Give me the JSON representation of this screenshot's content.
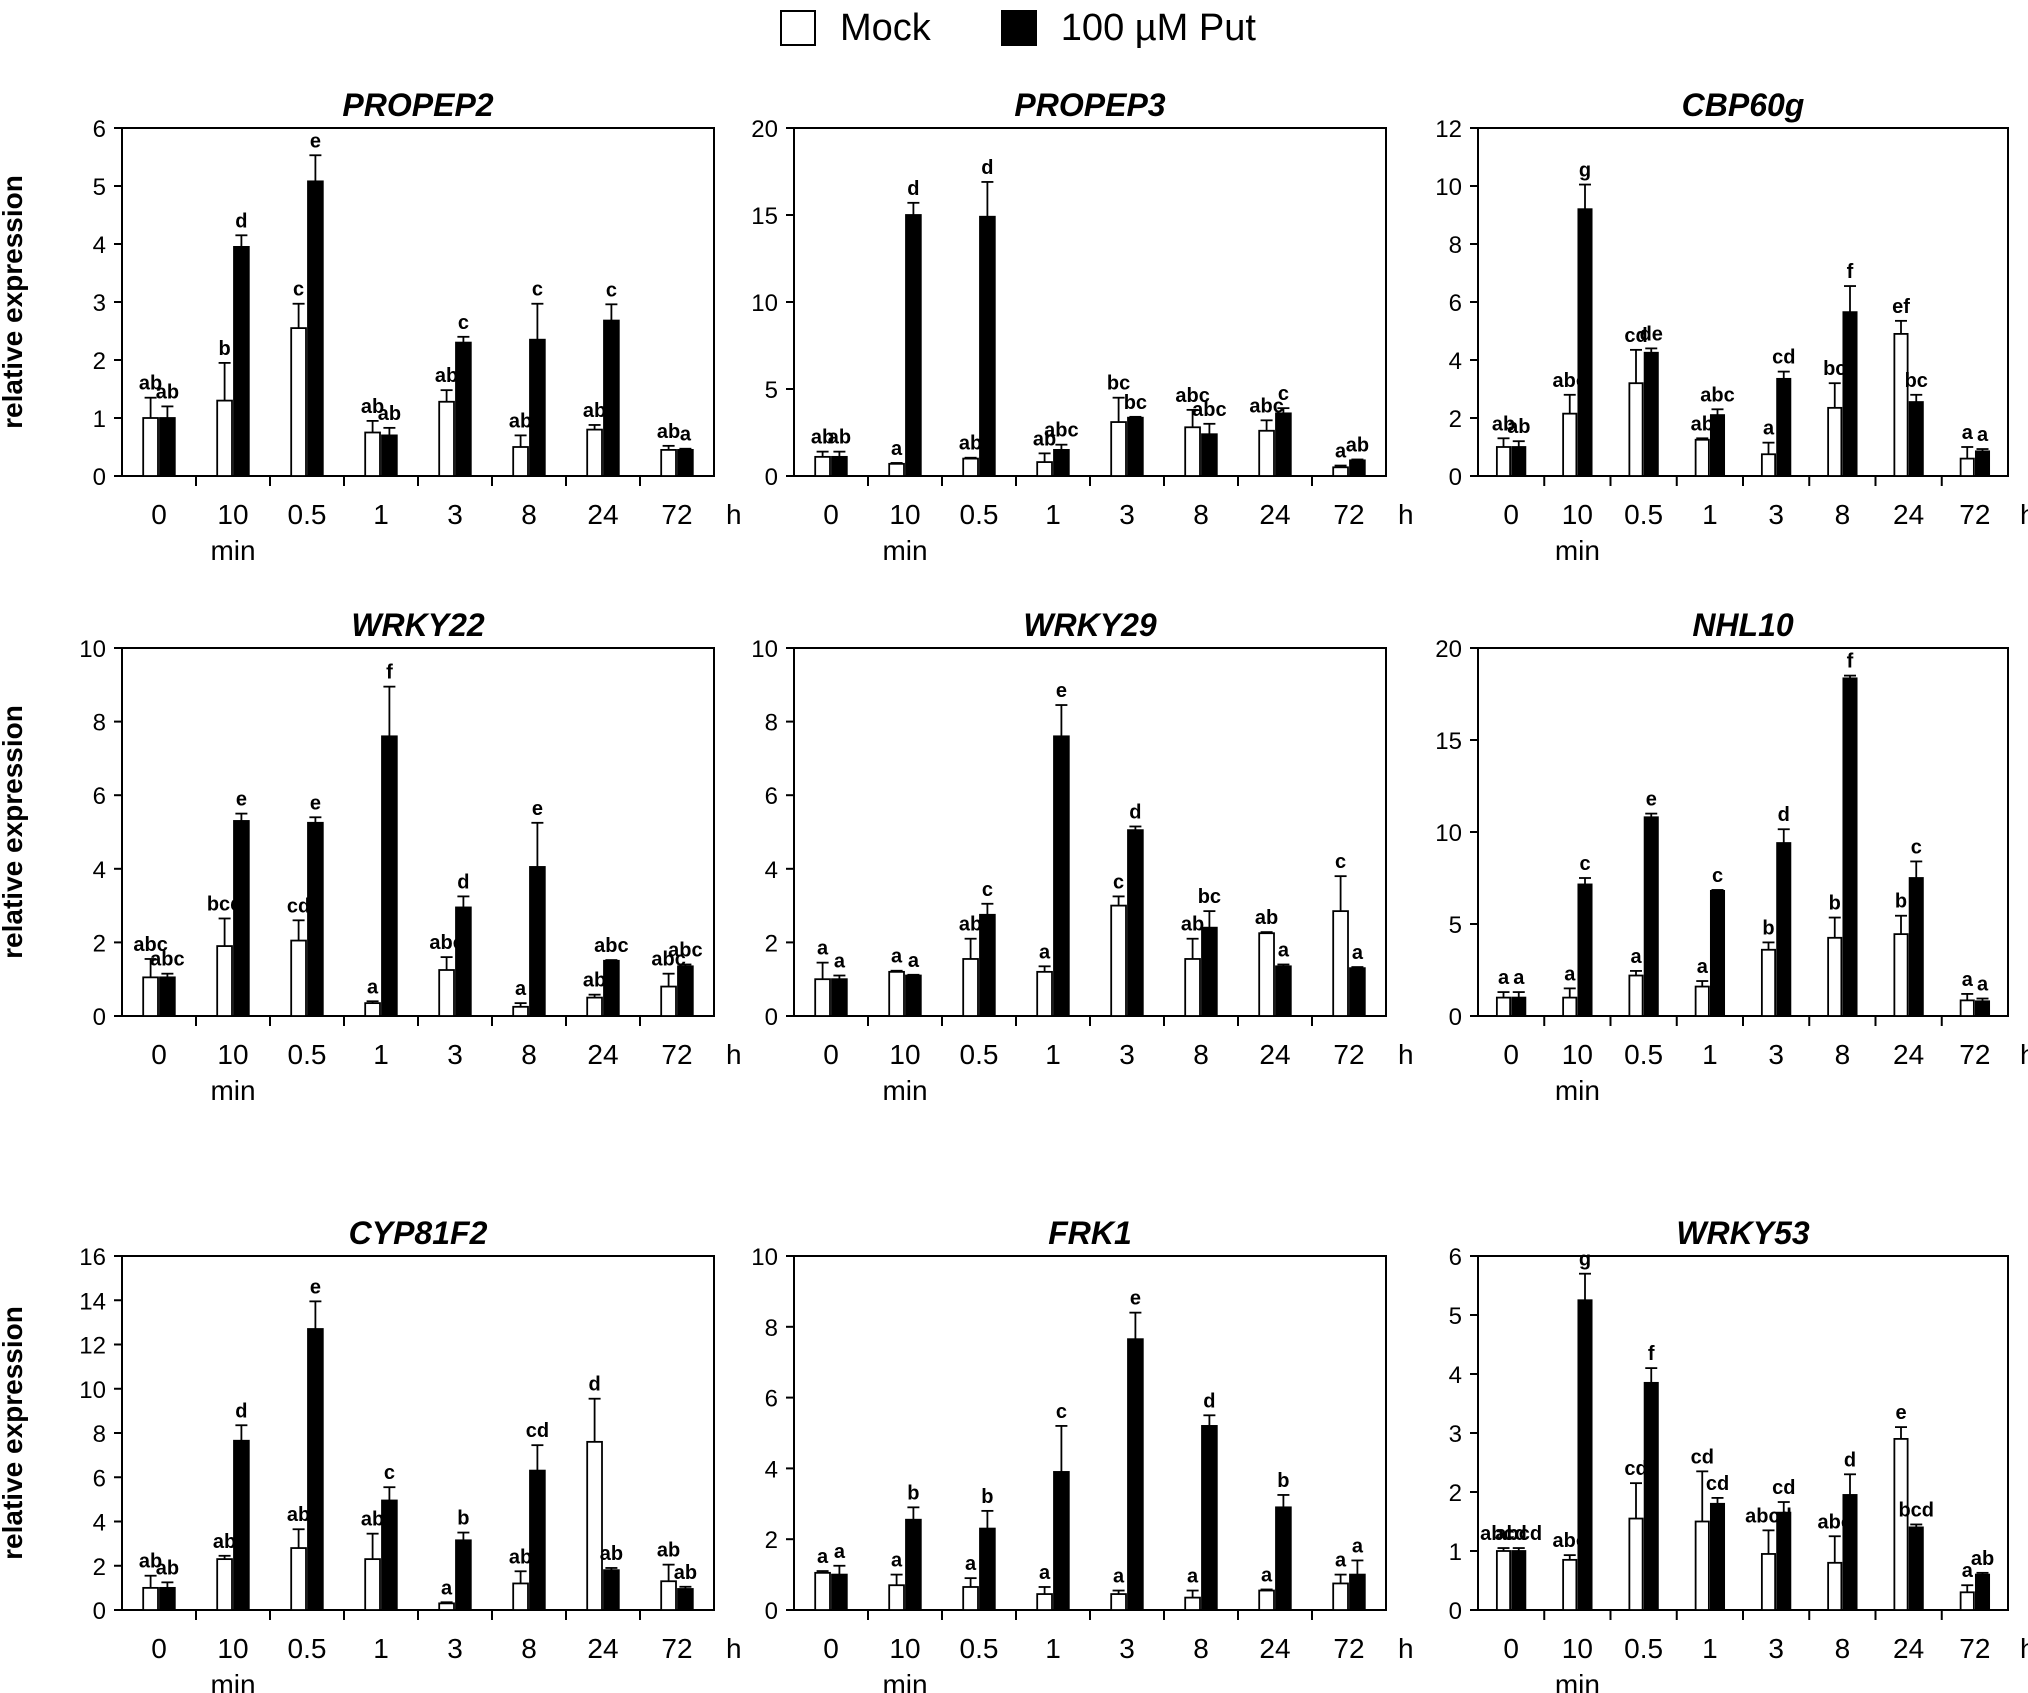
{
  "legend": {
    "mock_label": "Mock",
    "put_label": "100 µM Put"
  },
  "colors": {
    "mock_fill": "#ffffff",
    "put_fill": "#000000",
    "axis": "#000000"
  },
  "chart_data": [
    {
      "type": "bar",
      "title": "PROPEP2",
      "ylabel": "relative expression",
      "categories": [
        "0",
        "10",
        "0.5",
        "1",
        "3",
        "8",
        "24",
        "72"
      ],
      "x_unit": "h",
      "x_sublabel": "min",
      "ylim": [
        0,
        6
      ],
      "yticks": [
        0,
        1,
        2,
        3,
        4,
        5,
        6
      ],
      "series": [
        {
          "name": "Mock",
          "values": [
            1.0,
            1.3,
            2.55,
            0.75,
            1.28,
            0.5,
            0.8,
            0.45
          ],
          "errors": [
            0.35,
            0.65,
            0.42,
            0.2,
            0.2,
            0.2,
            0.08,
            0.07
          ],
          "letters": [
            "ab",
            "b",
            "c",
            "ab",
            "ab",
            "ab",
            "ab",
            "ab"
          ]
        },
        {
          "name": "100 µM Put",
          "values": [
            1.0,
            3.95,
            5.08,
            0.7,
            2.3,
            2.35,
            2.68,
            0.45
          ],
          "errors": [
            0.2,
            0.2,
            0.45,
            0.13,
            0.1,
            0.62,
            0.28,
            0.02
          ],
          "letters": [
            "ab",
            "d",
            "e",
            "ab",
            "c",
            "c",
            "c",
            "a"
          ]
        }
      ]
    },
    {
      "type": "bar",
      "title": "PROPEP3",
      "ylabel": "",
      "categories": [
        "0",
        "10",
        "0.5",
        "1",
        "3",
        "8",
        "24",
        "72"
      ],
      "x_unit": "h",
      "x_sublabel": "min",
      "ylim": [
        0,
        20
      ],
      "yticks": [
        0,
        5,
        10,
        15,
        20
      ],
      "series": [
        {
          "name": "Mock",
          "values": [
            1.1,
            0.7,
            1.0,
            0.8,
            3.1,
            2.8,
            2.6,
            0.5
          ],
          "errors": [
            0.3,
            0.05,
            0.05,
            0.5,
            1.4,
            1.0,
            0.6,
            0.1
          ],
          "letters": [
            "ab",
            "a",
            "ab",
            "ab",
            "bc",
            "abc",
            "abc",
            "a"
          ]
        },
        {
          "name": "100 µM Put",
          "values": [
            1.1,
            15.0,
            14.9,
            1.5,
            3.35,
            2.4,
            3.6,
            0.9
          ],
          "errors": [
            0.3,
            0.7,
            2.0,
            0.3,
            0.05,
            0.6,
            0.3,
            0.05
          ],
          "letters": [
            "ab",
            "d",
            "d",
            "abc",
            "bc",
            "abc",
            "c",
            "ab"
          ]
        }
      ]
    },
    {
      "type": "bar",
      "title": "CBP60g",
      "ylabel": "",
      "categories": [
        "0",
        "10",
        "0.5",
        "1",
        "3",
        "8",
        "24",
        "72"
      ],
      "x_unit": "h",
      "x_sublabel": "min",
      "ylim": [
        0,
        12
      ],
      "yticks": [
        0,
        2,
        4,
        6,
        8,
        10,
        12
      ],
      "series": [
        {
          "name": "Mock",
          "values": [
            1.0,
            2.15,
            3.2,
            1.25,
            0.75,
            2.35,
            4.9,
            0.6
          ],
          "errors": [
            0.3,
            0.65,
            1.15,
            0.05,
            0.4,
            0.85,
            0.45,
            0.4
          ],
          "letters": [
            "ab",
            "abc",
            "cd",
            "ab",
            "a",
            "bc",
            "ef",
            "a"
          ]
        },
        {
          "name": "100 µM Put",
          "values": [
            1.0,
            9.2,
            4.25,
            2.1,
            3.35,
            5.65,
            2.55,
            0.85
          ],
          "errors": [
            0.2,
            0.85,
            0.15,
            0.2,
            0.25,
            0.9,
            0.25,
            0.08
          ],
          "letters": [
            "ab",
            "g",
            "de",
            "abc",
            "cd",
            "f",
            "bc",
            "a"
          ]
        }
      ]
    },
    {
      "type": "bar",
      "title": "WRKY22",
      "ylabel": "relative expression",
      "categories": [
        "0",
        "10",
        "0.5",
        "1",
        "3",
        "8",
        "24",
        "72"
      ],
      "x_unit": "h",
      "x_sublabel": "min",
      "ylim": [
        0,
        10
      ],
      "yticks": [
        0,
        2,
        4,
        6,
        8,
        10
      ],
      "series": [
        {
          "name": "Mock",
          "values": [
            1.05,
            1.9,
            2.05,
            0.35,
            1.25,
            0.25,
            0.5,
            0.8
          ],
          "errors": [
            0.5,
            0.75,
            0.55,
            0.05,
            0.35,
            0.1,
            0.08,
            0.35
          ],
          "letters": [
            "abc",
            "bcd",
            "cd",
            "a",
            "abc",
            "a",
            "ab",
            "abc"
          ]
        },
        {
          "name": "100 µM Put",
          "values": [
            1.05,
            5.3,
            5.25,
            7.6,
            2.95,
            4.05,
            1.5,
            1.35
          ],
          "errors": [
            0.1,
            0.2,
            0.15,
            1.35,
            0.3,
            1.2,
            0.02,
            0.05
          ],
          "letters": [
            "abc",
            "e",
            "e",
            "f",
            "d",
            "e",
            "abc",
            "abc"
          ]
        }
      ]
    },
    {
      "type": "bar",
      "title": "WRKY29",
      "ylabel": "",
      "categories": [
        "0",
        "10",
        "0.5",
        "1",
        "3",
        "8",
        "24",
        "72"
      ],
      "x_unit": "h",
      "x_sublabel": "min",
      "ylim": [
        0,
        10
      ],
      "yticks": [
        0,
        2,
        4,
        6,
        8,
        10
      ],
      "series": [
        {
          "name": "Mock",
          "values": [
            1.0,
            1.2,
            1.55,
            1.2,
            3.0,
            1.55,
            2.25,
            2.85
          ],
          "errors": [
            0.45,
            0.03,
            0.55,
            0.15,
            0.25,
            0.55,
            0.03,
            0.95
          ],
          "letters": [
            "a",
            "a",
            "ab",
            "a",
            "c",
            "ab",
            "ab",
            "c"
          ]
        },
        {
          "name": "100 µM Put",
          "values": [
            1.0,
            1.1,
            2.75,
            7.6,
            5.05,
            2.4,
            1.35,
            1.3
          ],
          "errors": [
            0.1,
            0.02,
            0.3,
            0.85,
            0.1,
            0.45,
            0.05,
            0.03
          ],
          "letters": [
            "a",
            "a",
            "c",
            "e",
            "d",
            "bc",
            "a",
            "a"
          ]
        }
      ]
    },
    {
      "type": "bar",
      "title": "NHL10",
      "ylabel": "",
      "categories": [
        "0",
        "10",
        "0.5",
        "1",
        "3",
        "8",
        "24",
        "72"
      ],
      "x_unit": "h",
      "x_sublabel": "min",
      "ylim": [
        0,
        20
      ],
      "yticks": [
        0,
        5,
        10,
        15,
        20
      ],
      "series": [
        {
          "name": "Mock",
          "values": [
            1.0,
            1.0,
            2.2,
            1.6,
            3.6,
            4.25,
            4.45,
            0.85
          ],
          "errors": [
            0.3,
            0.5,
            0.25,
            0.3,
            0.4,
            1.1,
            1.0,
            0.35
          ],
          "letters": [
            "a",
            "a",
            "a",
            "a",
            "b",
            "b",
            "b",
            "a"
          ]
        },
        {
          "name": "100 µM Put",
          "values": [
            1.0,
            7.15,
            10.8,
            6.8,
            9.4,
            18.35,
            7.5,
            0.8
          ],
          "errors": [
            0.3,
            0.35,
            0.2,
            0.05,
            0.75,
            0.15,
            0.9,
            0.15
          ],
          "letters": [
            "a",
            "c",
            "e",
            "c",
            "d",
            "f",
            "c",
            "a"
          ]
        }
      ]
    },
    {
      "type": "bar",
      "title": "CYP81F2",
      "ylabel": "relative expression",
      "categories": [
        "0",
        "10",
        "0.5",
        "1",
        "3",
        "8",
        "24",
        "72"
      ],
      "x_unit": "h",
      "x_sublabel": "min",
      "ylim": [
        0,
        16
      ],
      "yticks": [
        0,
        2,
        4,
        6,
        8,
        10,
        12,
        14,
        16
      ],
      "series": [
        {
          "name": "Mock",
          "values": [
            1.0,
            2.3,
            2.8,
            2.3,
            0.3,
            1.2,
            7.6,
            1.3
          ],
          "errors": [
            0.55,
            0.15,
            0.85,
            1.15,
            0.05,
            0.55,
            1.95,
            0.75
          ],
          "letters": [
            "ab",
            "ab",
            "ab",
            "ab",
            "a",
            "ab",
            "d",
            "ab"
          ]
        },
        {
          "name": "100 µM Put",
          "values": [
            1.0,
            7.65,
            12.7,
            4.95,
            3.15,
            6.3,
            1.8,
            0.95
          ],
          "errors": [
            0.25,
            0.7,
            1.25,
            0.6,
            0.35,
            1.15,
            0.1,
            0.1
          ],
          "letters": [
            "ab",
            "d",
            "e",
            "c",
            "b",
            "cd",
            "ab",
            "ab"
          ]
        }
      ]
    },
    {
      "type": "bar",
      "title": "FRK1",
      "ylabel": "",
      "categories": [
        "0",
        "10",
        "0.5",
        "1",
        "3",
        "8",
        "24",
        "72"
      ],
      "x_unit": "h",
      "x_sublabel": "min",
      "ylim": [
        0,
        10
      ],
      "yticks": [
        0,
        2,
        4,
        6,
        8,
        10
      ],
      "series": [
        {
          "name": "Mock",
          "values": [
            1.05,
            0.7,
            0.65,
            0.45,
            0.45,
            0.35,
            0.55,
            0.75
          ],
          "errors": [
            0.05,
            0.3,
            0.25,
            0.2,
            0.1,
            0.2,
            0.03,
            0.25
          ],
          "letters": [
            "a",
            "a",
            "a",
            "a",
            "a",
            "a",
            "a",
            "a"
          ]
        },
        {
          "name": "100 µM Put",
          "values": [
            1.0,
            2.55,
            2.3,
            3.9,
            7.65,
            5.2,
            2.9,
            1.0
          ],
          "errors": [
            0.25,
            0.35,
            0.5,
            1.3,
            0.75,
            0.3,
            0.35,
            0.4
          ],
          "letters": [
            "a",
            "b",
            "b",
            "c",
            "e",
            "d",
            "b",
            "a"
          ]
        }
      ]
    },
    {
      "type": "bar",
      "title": "WRKY53",
      "ylabel": "",
      "categories": [
        "0",
        "10",
        "0.5",
        "1",
        "3",
        "8",
        "24",
        "72"
      ],
      "x_unit": "h",
      "x_sublabel": "min",
      "ylim": [
        0,
        6
      ],
      "yticks": [
        0,
        1,
        2,
        3,
        4,
        5,
        6
      ],
      "series": [
        {
          "name": "Mock",
          "values": [
            1.0,
            0.85,
            1.55,
            1.5,
            0.95,
            0.8,
            2.9,
            0.3
          ],
          "errors": [
            0.05,
            0.08,
            0.6,
            0.85,
            0.4,
            0.45,
            0.2,
            0.12
          ],
          "letters": [
            "abcd",
            "abc",
            "cd",
            "cd",
            "abcd",
            "abc",
            "e",
            "a"
          ]
        },
        {
          "name": "100 µM Put",
          "values": [
            1.0,
            5.25,
            3.85,
            1.8,
            1.65,
            1.95,
            1.4,
            0.6
          ],
          "errors": [
            0.05,
            0.45,
            0.25,
            0.1,
            0.18,
            0.35,
            0.05,
            0.03
          ],
          "letters": [
            "abcd",
            "g",
            "f",
            "cd",
            "cd",
            "d",
            "bcd",
            "ab"
          ]
        }
      ]
    }
  ]
}
